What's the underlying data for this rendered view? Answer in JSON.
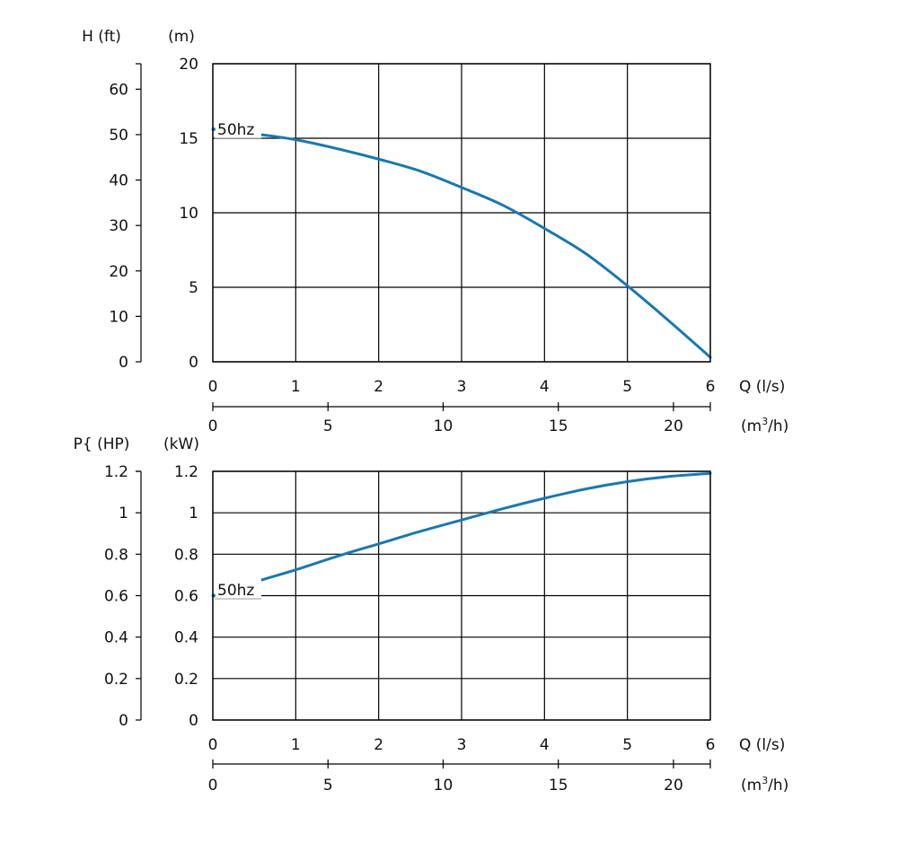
{
  "chart_data": [
    {
      "type": "line",
      "title": "",
      "colors": {
        "curve": "#1a78b0",
        "grid": "#000000"
      },
      "y_axis_left_label": "H (ft)",
      "y_axis_left_ticks": [
        "0",
        "10",
        "20",
        "30",
        "40",
        "50",
        "60"
      ],
      "y_axis_left_range_ft": [
        0,
        65.6
      ],
      "y_axis_label": "(m)",
      "y_ticks": [
        "0",
        "5",
        "10",
        "15",
        "20"
      ],
      "ylim": [
        0,
        20
      ],
      "x_axis_label": "Q (l/s)",
      "x_ticks": [
        "0",
        "1",
        "2",
        "3",
        "4",
        "5",
        "6"
      ],
      "xlim": [
        0,
        6
      ],
      "x2_axis_label_prefix": "(m",
      "x2_axis_label_sup": "3",
      "x2_axis_label_suffix": "/h)",
      "x2_ticks": [
        "0",
        "5",
        "10",
        "15",
        "20"
      ],
      "x2lim": [
        0,
        21.6
      ],
      "grid": true,
      "series": [
        {
          "name": "50hz",
          "x": [
            0,
            0.5,
            1.0,
            1.5,
            2.0,
            2.5,
            3.0,
            3.5,
            4.0,
            4.5,
            5.0,
            5.5,
            6.0
          ],
          "y": [
            15.6,
            15.3,
            14.9,
            14.3,
            13.6,
            12.8,
            11.7,
            10.5,
            8.95,
            7.25,
            5.1,
            2.75,
            0.3
          ]
        }
      ]
    },
    {
      "type": "line",
      "title": "",
      "colors": {
        "curve": "#1a78b0",
        "grid": "#000000"
      },
      "y_axis_left_label": "P{ (HP)",
      "y_axis_left_ticks": [
        "0",
        "0.2",
        "0.4",
        "0.6",
        "0.8",
        "1",
        "1.2"
      ],
      "y_axis_left_range_hp": [
        0,
        1.2
      ],
      "y_axis_label": "(kW)",
      "y_ticks": [
        "0",
        "0.2",
        "0.4",
        "0.6",
        "0.8",
        "1",
        "1.2"
      ],
      "ylim": [
        0,
        1.2
      ],
      "x_axis_label": "Q (l/s)",
      "x_ticks": [
        "0",
        "1",
        "2",
        "3",
        "4",
        "5",
        "6"
      ],
      "xlim": [
        0,
        6
      ],
      "x2_axis_label_prefix": "(m",
      "x2_axis_label_sup": "3",
      "x2_axis_label_suffix": "/h)",
      "x2_ticks": [
        "0",
        "5",
        "10",
        "15",
        "20"
      ],
      "x2lim": [
        0,
        21.6
      ],
      "grid": true,
      "series": [
        {
          "name": "50hz",
          "x": [
            0,
            0.5,
            1.0,
            1.5,
            2.0,
            2.5,
            3.0,
            3.5,
            4.0,
            4.5,
            5.0,
            5.5,
            6.0
          ],
          "y": [
            0.6,
            0.665,
            0.725,
            0.79,
            0.85,
            0.91,
            0.965,
            1.02,
            1.07,
            1.115,
            1.15,
            1.175,
            1.19
          ]
        }
      ]
    }
  ]
}
